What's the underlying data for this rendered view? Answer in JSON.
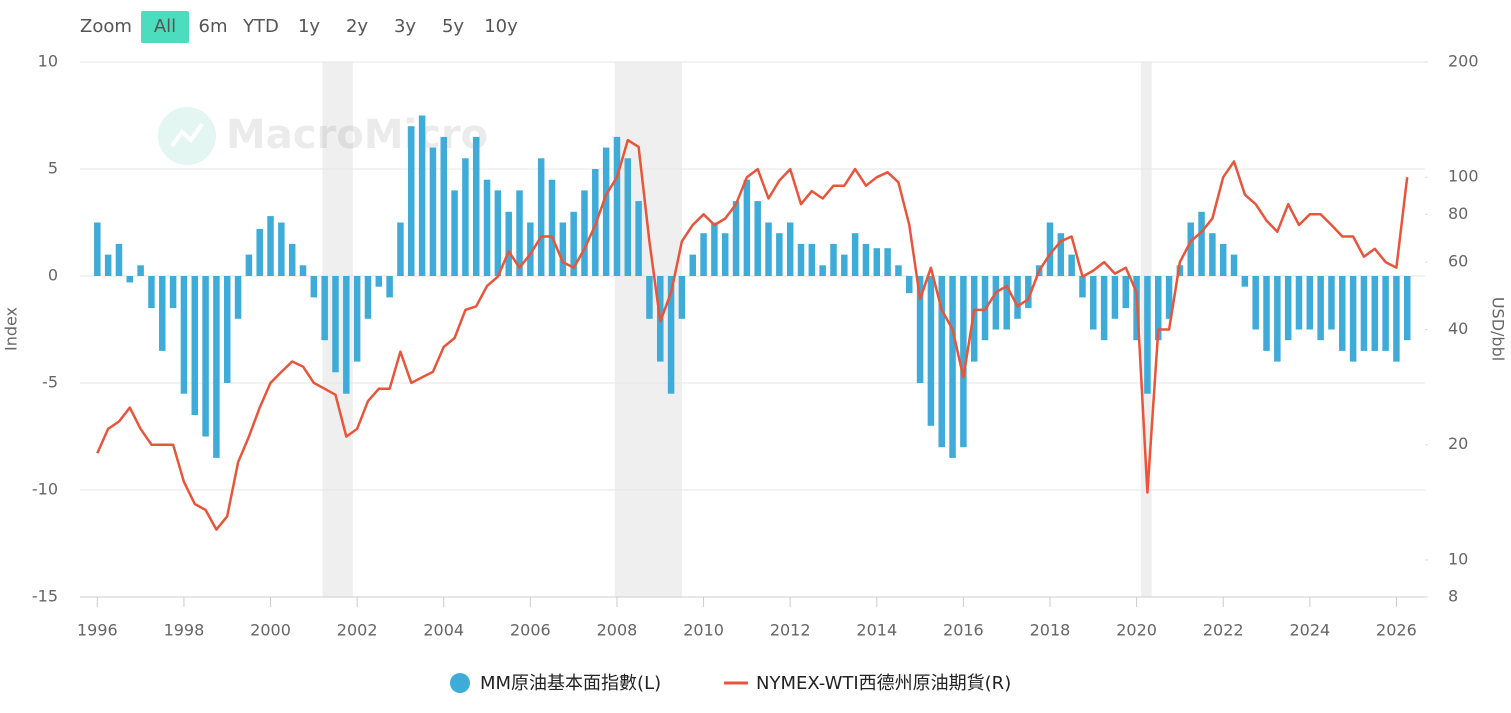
{
  "range_selector": {
    "label": "Zoom",
    "buttons": [
      "All",
      "6m",
      "YTD",
      "1y",
      "2y",
      "3y",
      "5y",
      "10y"
    ],
    "selected": 0
  },
  "chart_data": {
    "type": "combo",
    "watermark": "MacroMicro",
    "ylabel": "Index",
    "y2label": "USD/bbl",
    "x": [
      1996,
      1996.25,
      1996.5,
      1996.75,
      1997,
      1997.25,
      1997.5,
      1997.75,
      1998,
      1998.25,
      1998.5,
      1998.75,
      1999,
      1999.25,
      1999.5,
      1999.75,
      2000,
      2000.25,
      2000.5,
      2000.75,
      2001,
      2001.25,
      2001.5,
      2001.75,
      2002,
      2002.25,
      2002.5,
      2002.75,
      2003,
      2003.25,
      2003.5,
      2003.75,
      2004,
      2004.25,
      2004.5,
      2004.75,
      2005,
      2005.25,
      2005.5,
      2005.75,
      2006,
      2006.25,
      2006.5,
      2006.75,
      2007,
      2007.25,
      2007.5,
      2007.75,
      2008,
      2008.25,
      2008.5,
      2008.75,
      2009,
      2009.25,
      2009.5,
      2009.75,
      2010,
      2010.25,
      2010.5,
      2010.75,
      2011,
      2011.25,
      2011.5,
      2011.75,
      2012,
      2012.25,
      2012.5,
      2012.75,
      2013,
      2013.25,
      2013.5,
      2013.75,
      2014,
      2014.25,
      2014.5,
      2014.75,
      2015,
      2015.25,
      2015.5,
      2015.75,
      2016,
      2016.25,
      2016.5,
      2016.75,
      2017,
      2017.25,
      2017.5,
      2017.75,
      2018,
      2018.25,
      2018.5,
      2018.75,
      2019,
      2019.25,
      2019.5,
      2019.75,
      2020,
      2020.25,
      2020.5,
      2020.75,
      2021,
      2021.25,
      2021.5,
      2021.75,
      2022,
      2022.25,
      2022.5,
      2022.75,
      2023,
      2023.25,
      2023.5,
      2023.75,
      2024,
      2024.25,
      2024.5,
      2024.75,
      2025,
      2025.25,
      2025.5,
      2025.75,
      2026,
      2026.25
    ],
    "xlim": [
      1995.6,
      2026.66
    ],
    "xticks": [
      1996,
      1998,
      2000,
      2002,
      2004,
      2006,
      2008,
      2010,
      2012,
      2014,
      2016,
      2018,
      2020,
      2022,
      2024,
      2026
    ],
    "ylim": [
      -15,
      10
    ],
    "yticks": [
      -15,
      -10,
      -5,
      0,
      5,
      10
    ],
    "y2lim": [
      8,
      200
    ],
    "y2ticks": [
      8,
      10,
      20,
      40,
      60,
      80,
      100,
      200
    ],
    "y2log": true,
    "grid": true,
    "shaded_ranges": [
      [
        2001.2,
        2001.9
      ],
      [
        2007.95,
        2009.5
      ],
      [
        2020.1,
        2020.35
      ]
    ],
    "legend": "bottom",
    "series": [
      {
        "name": "MM原油基本面指數(L)",
        "color": "#3fabd8",
        "type": "bar",
        "values": [
          2.5,
          1,
          1.5,
          -0.3,
          0.5,
          -1.5,
          -3.5,
          -1.5,
          -5.5,
          -6.5,
          -7.5,
          -8.5,
          -5,
          -2,
          1,
          2.2,
          2.8,
          2.5,
          1.5,
          0.5,
          -1,
          -3,
          -4.5,
          -5.5,
          -4,
          -2,
          -0.5,
          -1,
          2.5,
          7,
          7.5,
          6,
          6.5,
          4,
          5.5,
          6.5,
          4.5,
          4,
          3,
          4,
          2.5,
          5.5,
          4.5,
          2.5,
          3,
          4,
          5,
          6,
          6.5,
          5.5,
          3.5,
          -2,
          -4,
          -5.5,
          -2,
          1,
          2,
          2.5,
          2,
          3.5,
          4.5,
          3.5,
          2.5,
          2,
          2.5,
          1.5,
          1.5,
          0.5,
          1.5,
          1,
          2,
          1.5,
          1.3,
          1.3,
          0.5,
          -0.8,
          -5,
          -7,
          -8,
          -8.5,
          -8,
          -4,
          -3,
          -2.5,
          -2.5,
          -2,
          -1.5,
          0.5,
          2.5,
          2,
          1,
          -1,
          -2.5,
          -3,
          -2,
          -1.5,
          -3,
          -5.5,
          -3,
          -2,
          0.5,
          2.5,
          3,
          2,
          1.5,
          1,
          -0.5,
          -2.5,
          -3.5,
          -4,
          -3,
          -2.5,
          -2.5,
          -3,
          -2.5,
          -3.5,
          -4,
          -3.5,
          -3.5,
          -3.5,
          -4,
          -3
        ]
      },
      {
        "name": "NYMEX-WTI西德州原油期貨(R)",
        "color": "#e8553b",
        "type": "line",
        "axis": "y2",
        "values": [
          19,
          22,
          23,
          25,
          22,
          20,
          20,
          20,
          16,
          14,
          13.5,
          12,
          13,
          18,
          21,
          25,
          29,
          31,
          33,
          32,
          29,
          28,
          27,
          21,
          22,
          26,
          28,
          28,
          35,
          29,
          30,
          31,
          36,
          38,
          45,
          46,
          52,
          55,
          64,
          58,
          63,
          70,
          70,
          60,
          58,
          65,
          75,
          90,
          100,
          125,
          120,
          68,
          42,
          50,
          68,
          75,
          80,
          75,
          78,
          85,
          100,
          105,
          88,
          98,
          105,
          85,
          92,
          88,
          95,
          95,
          105,
          95,
          100,
          103,
          97,
          75,
          48,
          58,
          45,
          40,
          30,
          45,
          45,
          50,
          52,
          46,
          48,
          57,
          63,
          68,
          70,
          55,
          57,
          60,
          56,
          58,
          50,
          15,
          40,
          40,
          60,
          68,
          72,
          78,
          100,
          110,
          90,
          85,
          77,
          72,
          85,
          75,
          80,
          80,
          75,
          70,
          70,
          62,
          65,
          60,
          58,
          100
        ]
      }
    ]
  }
}
